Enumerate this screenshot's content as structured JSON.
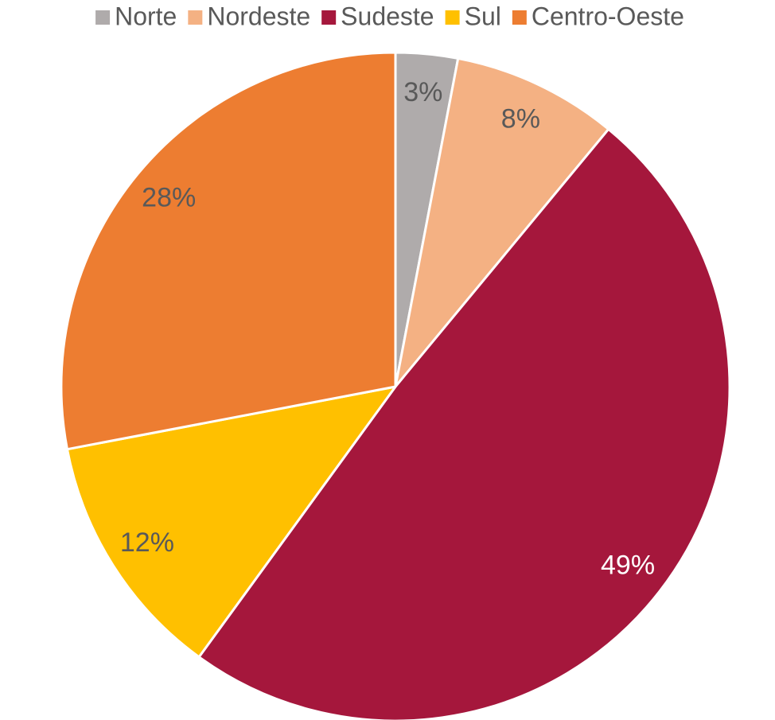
{
  "chart_data": {
    "type": "pie",
    "categories": [
      "Norte",
      "Nordeste",
      "Sudeste",
      "Sul",
      "Centro-Oeste"
    ],
    "values": [
      3,
      8,
      49,
      12,
      28
    ],
    "value_labels": [
      "3%",
      "8%",
      "49%",
      "12%",
      "28%"
    ],
    "colors": [
      "#afabab",
      "#f4b183",
      "#a5173c",
      "#ffc000",
      "#ed7d31"
    ],
    "legend": "top"
  }
}
